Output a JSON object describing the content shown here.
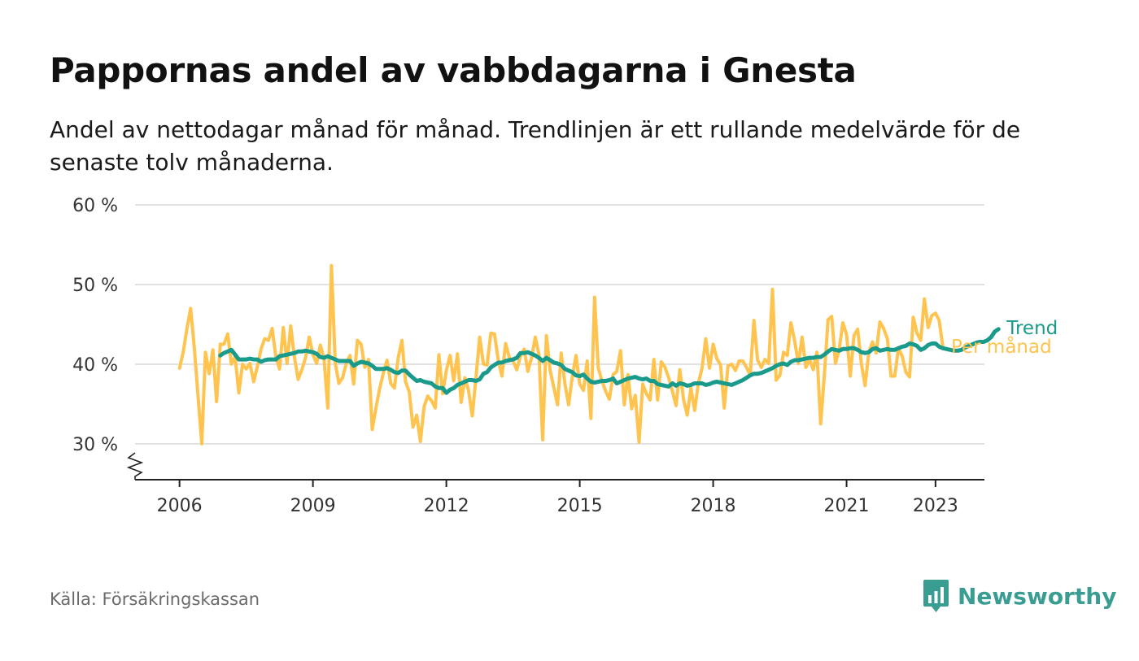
{
  "title": "Pappornas andel av vabbdagarna i Gnesta",
  "subtitle": "Andel av nettodagar månad för månad. Trendlinjen är ett rullande medelvärde för de senaste tolv månaderna.",
  "source": "Källa: Försäkringskassan",
  "brand": "Newsworthy",
  "colors": {
    "monthly": "#fec44f",
    "trend": "#1a9a8a",
    "grid": "#d9d9d9",
    "axis": "#222222",
    "brand": "#3a9d92"
  },
  "chart_data": {
    "type": "line",
    "ylim": [
      25.5,
      60
    ],
    "yticks": [
      30,
      40,
      50,
      60
    ],
    "ytick_labels": [
      "30 %",
      "40 %",
      "50 %",
      "60 %"
    ],
    "xlim": [
      2005.0,
      2024.1
    ],
    "xticks": [
      2006,
      2009,
      2012,
      2015,
      2018,
      2021,
      2023
    ],
    "xtick_labels": [
      "2006",
      "2009",
      "2012",
      "2015",
      "2018",
      "2021",
      "2023"
    ],
    "grid": "horizontal",
    "legend": "line-end labels",
    "series": [
      {
        "name": "Per månad",
        "color": "#fec44f",
        "start": [
          2006,
          1
        ],
        "values": [
          39.5,
          41.5,
          44.5,
          47.0,
          42.0,
          36.0,
          30.0,
          41.5,
          38.8,
          41.8,
          35.3,
          42.5,
          42.5,
          43.8,
          40.0,
          40.9,
          36.4,
          40.0,
          39.4,
          40.1,
          37.8,
          39.7,
          41.9,
          43.2,
          43.0,
          44.5,
          40.9,
          39.4,
          44.6,
          40.1,
          44.8,
          40.9,
          38.1,
          39.3,
          40.8,
          43.4,
          41.2,
          40.1,
          42.4,
          40.7,
          34.5,
          52.4,
          40.2,
          37.6,
          38.3,
          40.1,
          41.1,
          37.5,
          43.0,
          42.5,
          39.6,
          40.6,
          31.8,
          34.5,
          36.9,
          38.9,
          40.5,
          37.6,
          37.0,
          40.8,
          43.0,
          37.8,
          36.5,
          32.1,
          33.6,
          30.3,
          34.7,
          36.0,
          35.4,
          34.5,
          41.2,
          36.3,
          39.2,
          41.1,
          37.9,
          41.3,
          35.2,
          38.3,
          36.7,
          33.5,
          38.4,
          43.4,
          40.0,
          39.9,
          43.9,
          43.8,
          40.5,
          38.5,
          42.6,
          40.8,
          40.4,
          39.3,
          41.0,
          41.9,
          39.1,
          40.8,
          43.4,
          41.2,
          30.5,
          43.6,
          39.2,
          37.1,
          34.9,
          41.4,
          37.5,
          34.9,
          38.5,
          41.1,
          37.5,
          36.7,
          40.4,
          33.2,
          48.4,
          39.5,
          37.9,
          36.6,
          35.6,
          38.7,
          39.1,
          41.7,
          34.9,
          38.7,
          34.4,
          36.1,
          30.2,
          37.5,
          36.3,
          35.5,
          40.6,
          35.5,
          40.3,
          39.6,
          38.3,
          36.6,
          34.8,
          39.3,
          35.6,
          33.6,
          37.0,
          34.2,
          37.6,
          39.5,
          43.2,
          39.5,
          42.5,
          40.7,
          39.9,
          34.5,
          39.8,
          40.0,
          39.2,
          40.4,
          40.4,
          39.6,
          38.6,
          45.5,
          40.5,
          39.6,
          40.6,
          40.1,
          49.4,
          38.0,
          38.6,
          41.5,
          41.1,
          45.2,
          42.9,
          40.1,
          43.4,
          39.6,
          40.6,
          39.3,
          41.5,
          32.5,
          38.6,
          45.6,
          46.0,
          40.1,
          41.8,
          45.2,
          43.7,
          38.5,
          43.6,
          44.4,
          40.0,
          37.3,
          41.5,
          42.8,
          41.4,
          45.3,
          44.5,
          43.2,
          38.5,
          38.5,
          42.0,
          41.0,
          39.0,
          38.4,
          45.9,
          43.9,
          43.0,
          48.2,
          44.6,
          46.1,
          46.4,
          45.5,
          42.1
        ]
      },
      {
        "name": "Trend",
        "color": "#1a9a8a",
        "start": [
          2006,
          12
        ],
        "values": [
          41.1,
          41.4,
          41.6,
          41.8,
          41.2,
          40.6,
          40.6,
          40.6,
          40.7,
          40.6,
          40.6,
          40.3,
          40.5,
          40.6,
          40.6,
          40.6,
          41.0,
          41.1,
          41.2,
          41.3,
          41.4,
          41.6,
          41.6,
          41.7,
          41.6,
          41.5,
          41.3,
          40.9,
          40.8,
          41.0,
          40.8,
          40.6,
          40.4,
          40.4,
          40.4,
          40.4,
          39.8,
          40.1,
          40.3,
          40.2,
          40.1,
          39.8,
          39.4,
          39.4,
          39.4,
          39.5,
          39.3,
          39.0,
          38.9,
          39.2,
          39.2,
          38.7,
          38.3,
          37.9,
          38.0,
          37.8,
          37.7,
          37.6,
          37.2,
          37.0,
          37.0,
          36.4,
          36.8,
          37.0,
          37.4,
          37.6,
          37.8,
          38.0,
          38.0,
          37.9,
          38.1,
          38.8,
          39.0,
          39.6,
          39.9,
          40.2,
          40.2,
          40.4,
          40.5,
          40.6,
          40.8,
          41.4,
          41.4,
          41.5,
          41.3,
          41.1,
          40.8,
          40.4,
          40.8,
          40.5,
          40.2,
          40.1,
          39.9,
          39.4,
          39.2,
          39.0,
          38.6,
          38.5,
          38.7,
          38.2,
          37.8,
          37.7,
          37.8,
          37.9,
          37.9,
          38.0,
          38.2,
          37.6,
          37.8,
          38.0,
          38.2,
          38.3,
          38.4,
          38.2,
          38.1,
          38.2,
          37.9,
          37.9,
          37.5,
          37.4,
          37.3,
          37.2,
          37.6,
          37.3,
          37.6,
          37.5,
          37.3,
          37.4,
          37.6,
          37.6,
          37.6,
          37.4,
          37.5,
          37.7,
          37.8,
          37.7,
          37.6,
          37.5,
          37.4,
          37.6,
          37.8,
          38.0,
          38.3,
          38.6,
          38.8,
          38.8,
          38.9,
          39.1,
          39.3,
          39.5,
          39.8,
          40.0,
          40.1,
          39.9,
          40.3,
          40.5,
          40.5,
          40.6,
          40.7,
          40.8,
          40.8,
          40.9,
          40.9,
          41.2,
          41.6,
          41.9,
          41.8,
          41.7,
          41.9,
          41.9,
          42.0,
          42.0,
          41.8,
          41.5,
          41.4,
          41.5,
          41.9,
          42.0,
          41.7,
          41.8,
          41.9,
          41.8,
          41.8,
          42.0,
          42.2,
          42.3,
          42.6,
          42.5,
          42.3,
          41.8,
          42.0,
          42.4,
          42.6,
          42.6,
          42.2,
          42.0,
          41.9,
          41.8,
          41.7,
          41.7,
          41.8,
          42.1,
          42.3,
          42.5,
          42.7,
          42.8,
          42.8,
          43.0,
          43.4,
          44.1,
          44.4
        ]
      }
    ]
  }
}
